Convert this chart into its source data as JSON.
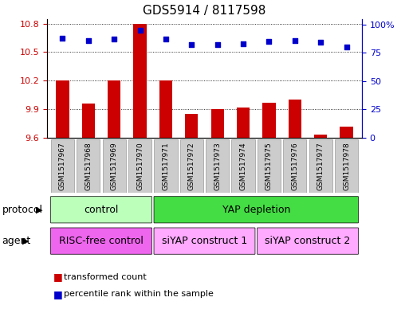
{
  "title": "GDS5914 / 8117598",
  "samples": [
    "GSM1517967",
    "GSM1517968",
    "GSM1517969",
    "GSM1517970",
    "GSM1517971",
    "GSM1517972",
    "GSM1517973",
    "GSM1517974",
    "GSM1517975",
    "GSM1517976",
    "GSM1517977",
    "GSM1517978"
  ],
  "bar_values": [
    10.2,
    9.96,
    10.2,
    10.8,
    10.2,
    9.85,
    9.9,
    9.92,
    9.97,
    10.0,
    9.63,
    9.72
  ],
  "dot_values": [
    88,
    86,
    87,
    95,
    87,
    82,
    82,
    83,
    85,
    86,
    84,
    80
  ],
  "ylim_left": [
    9.6,
    10.85
  ],
  "yticks_left": [
    9.6,
    9.9,
    10.2,
    10.5,
    10.8
  ],
  "ylim_right": [
    0,
    105
  ],
  "yticks_right": [
    0,
    25,
    50,
    75,
    100
  ],
  "yticklabels_right": [
    "0",
    "25",
    "50",
    "75",
    "100%"
  ],
  "bar_color": "#cc0000",
  "dot_color": "#0000cc",
  "bar_bottom": 9.6,
  "protocol_groups": [
    {
      "label": "control",
      "start": 0,
      "end": 4,
      "color": "#bbffbb"
    },
    {
      "label": "YAP depletion",
      "start": 4,
      "end": 12,
      "color": "#44dd44"
    }
  ],
  "agent_groups": [
    {
      "label": "RISC-free control",
      "start": 0,
      "end": 4,
      "color": "#ee66ee"
    },
    {
      "label": "siYAP construct 1",
      "start": 4,
      "end": 8,
      "color": "#ffaaff"
    },
    {
      "label": "siYAP construct 2",
      "start": 8,
      "end": 12,
      "color": "#ffaaff"
    }
  ],
  "legend_items": [
    {
      "label": "transformed count",
      "color": "#cc0000"
    },
    {
      "label": "percentile rank within the sample",
      "color": "#0000cc"
    }
  ],
  "protocol_label": "protocol",
  "agent_label": "agent",
  "title_fontsize": 11,
  "tick_fontsize": 8,
  "sample_fontsize": 6.5,
  "row_fontsize": 9,
  "legend_fontsize": 8
}
